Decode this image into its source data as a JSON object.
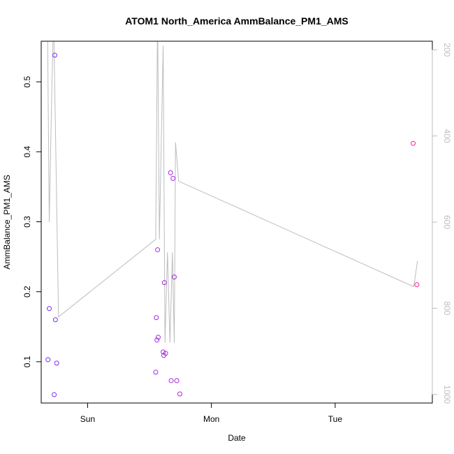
{
  "chart_data": {
    "type": "scatter",
    "title": "ATOM1 North_America AmmBalance_PM1_AMS",
    "xlabel": "Date",
    "ylabel": "AmmBalance_PM1_AMS",
    "x_ticks": [
      {
        "x": 0.0,
        "label": "Sun"
      },
      {
        "x": 1.0,
        "label": "Mon"
      },
      {
        "x": 2.0,
        "label": "Tue"
      }
    ],
    "xlim": [
      -0.375,
      2.785
    ],
    "ylim": [
      0.041,
      0.558
    ],
    "y_ticks": [
      0.1,
      0.2,
      0.3,
      0.4,
      0.5
    ],
    "y2_ticks": [
      200,
      400,
      600,
      800,
      1000
    ],
    "y2lim": [
      1020,
      180
    ],
    "y2_reversed": true,
    "grid": false,
    "colors": {
      "line": "#bdbdbd",
      "axis": "#000000",
      "y2_axis": "#bdbdbd",
      "point_start": "#7b2cff",
      "point_end": "#ff1fa0"
    },
    "series": [
      {
        "kind": "points",
        "points": [
          {
            "x": -0.32,
            "y": 0.103
          },
          {
            "x": -0.31,
            "y": 0.176
          },
          {
            "x": -0.27,
            "y": 0.053
          },
          {
            "x": -0.265,
            "y": 0.538
          },
          {
            "x": -0.26,
            "y": 0.16
          },
          {
            "x": -0.25,
            "y": 0.098
          },
          {
            "x": 0.55,
            "y": 0.085
          },
          {
            "x": 0.555,
            "y": 0.163
          },
          {
            "x": 0.56,
            "y": 0.131
          },
          {
            "x": 0.565,
            "y": 0.26
          },
          {
            "x": 0.57,
            "y": 0.135
          },
          {
            "x": 0.61,
            "y": 0.114
          },
          {
            "x": 0.615,
            "y": 0.109
          },
          {
            "x": 0.62,
            "y": 0.213
          },
          {
            "x": 0.63,
            "y": 0.112
          },
          {
            "x": 0.67,
            "y": 0.37
          },
          {
            "x": 0.675,
            "y": 0.073
          },
          {
            "x": 0.69,
            "y": 0.362
          },
          {
            "x": 0.7,
            "y": 0.221
          },
          {
            "x": 0.72,
            "y": 0.073
          },
          {
            "x": 0.745,
            "y": 0.054
          },
          {
            "x": 2.63,
            "y": 0.412
          },
          {
            "x": 2.66,
            "y": 0.21
          }
        ]
      },
      {
        "kind": "line",
        "axis": "right",
        "points": [
          {
            "x": -0.325,
            "y": 120
          },
          {
            "x": -0.31,
            "y": 600
          },
          {
            "x": -0.29,
            "y": 300
          },
          {
            "x": -0.275,
            "y": 120
          },
          {
            "x": -0.235,
            "y": 820
          },
          {
            "x": 0.55,
            "y": 640
          },
          {
            "x": 0.565,
            "y": 120
          },
          {
            "x": 0.58,
            "y": 640
          },
          {
            "x": 0.61,
            "y": 190
          },
          {
            "x": 0.625,
            "y": 880
          },
          {
            "x": 0.645,
            "y": 670
          },
          {
            "x": 0.665,
            "y": 880
          },
          {
            "x": 0.685,
            "y": 670
          },
          {
            "x": 0.7,
            "y": 880
          },
          {
            "x": 0.71,
            "y": 415
          },
          {
            "x": 0.735,
            "y": 505
          },
          {
            "x": 2.635,
            "y": 750
          },
          {
            "x": 2.665,
            "y": 690
          }
        ]
      }
    ]
  }
}
